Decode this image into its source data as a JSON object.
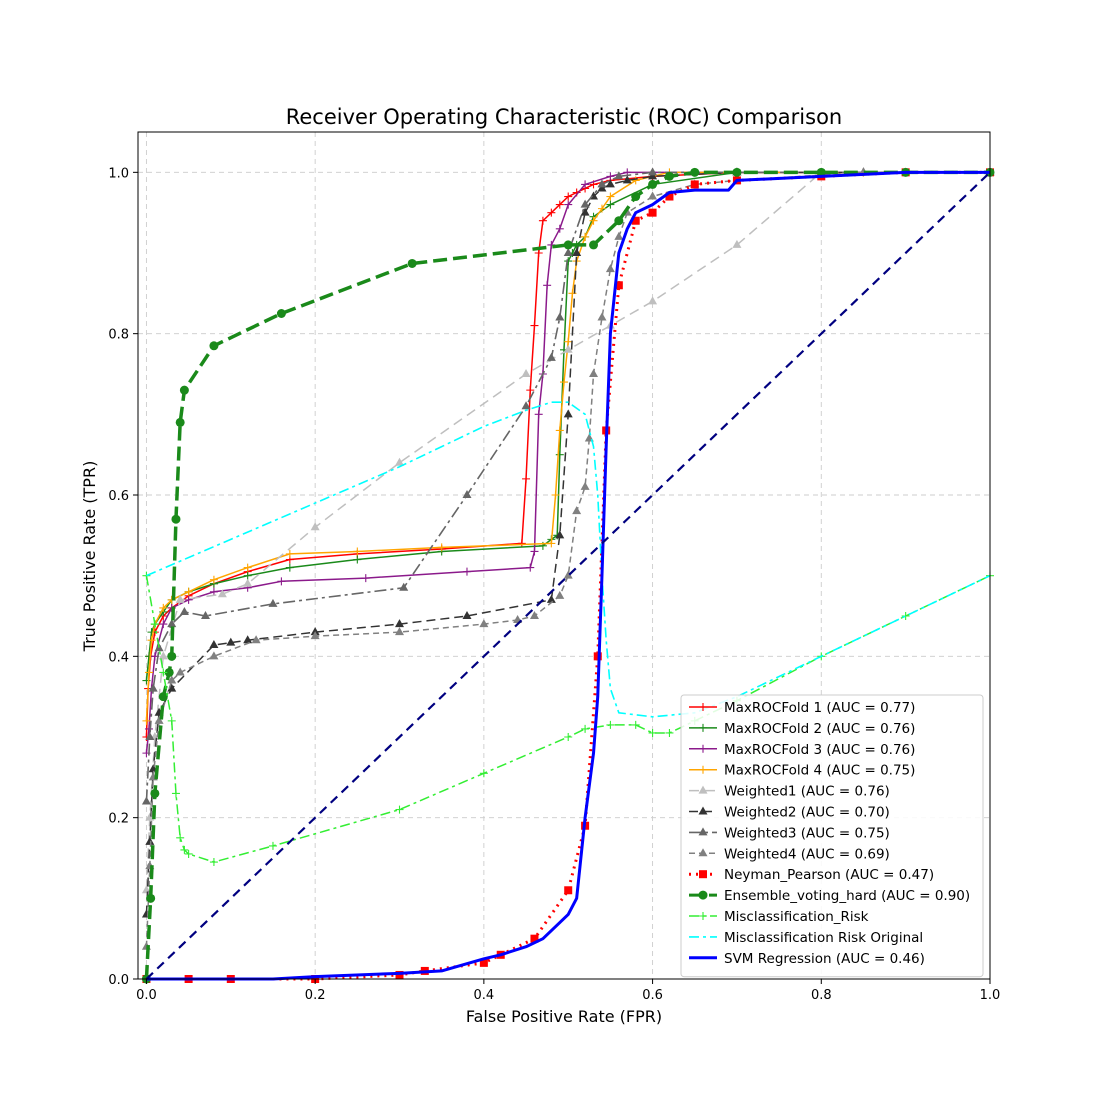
{
  "chart_data": {
    "type": "line",
    "title": "Receiver Operating Characteristic (ROC) Comparison",
    "xlabel": "False Positive Rate (FPR)",
    "ylabel": "True Positive Rate (TPR)",
    "xlim": [
      -0.01,
      1.0
    ],
    "ylim": [
      0.0,
      1.05
    ],
    "xticks": [
      0.0,
      0.2,
      0.4,
      0.6,
      0.8,
      1.0
    ],
    "yticks": [
      0.0,
      0.2,
      0.4,
      0.6,
      0.8,
      1.0
    ],
    "xtick_labels": [
      "0.0",
      "0.2",
      "0.4",
      "0.6",
      "0.8",
      "1.0"
    ],
    "ytick_labels": [
      "0.0",
      "0.2",
      "0.4",
      "0.6",
      "0.8",
      "1.0"
    ],
    "grid": true,
    "legend_position": "lower-right",
    "series": [
      {
        "name": "MaxROCFold 1 (AUC = 0.77)",
        "color": "#ff0000",
        "dash": "",
        "marker": "plus",
        "width": 1.5,
        "x": [
          0,
          0.002,
          0.005,
          0.01,
          0.02,
          0.03,
          0.05,
          0.08,
          0.12,
          0.17,
          0.25,
          0.35,
          0.445,
          0.45,
          0.455,
          0.46,
          0.465,
          0.47,
          0.48,
          0.49,
          0.5,
          0.51,
          0.52,
          0.53,
          0.55,
          0.6,
          0.7,
          0.85,
          1.0
        ],
        "y": [
          0.3,
          0.36,
          0.4,
          0.43,
          0.45,
          0.46,
          0.475,
          0.49,
          0.505,
          0.52,
          0.527,
          0.533,
          0.54,
          0.62,
          0.73,
          0.81,
          0.9,
          0.94,
          0.95,
          0.96,
          0.97,
          0.975,
          0.98,
          0.985,
          0.99,
          0.995,
          1.0,
          1.0,
          1.0
        ]
      },
      {
        "name": "MaxROCFold 2 (AUC = 0.76)",
        "color": "#1a8a1a",
        "dash": "",
        "marker": "plus",
        "width": 1.5,
        "x": [
          0,
          0.003,
          0.006,
          0.01,
          0.02,
          0.03,
          0.05,
          0.08,
          0.12,
          0.17,
          0.25,
          0.35,
          0.47,
          0.48,
          0.487,
          0.49,
          0.495,
          0.5,
          0.505,
          0.51,
          0.52,
          0.53,
          0.55,
          0.6,
          0.7,
          0.85,
          1.0
        ],
        "y": [
          0.37,
          0.4,
          0.43,
          0.44,
          0.455,
          0.47,
          0.48,
          0.49,
          0.5,
          0.51,
          0.52,
          0.53,
          0.537,
          0.545,
          0.55,
          0.65,
          0.78,
          0.89,
          0.9,
          0.91,
          0.92,
          0.945,
          0.96,
          0.985,
          1.0,
          1.0,
          1.0
        ]
      },
      {
        "name": "MaxROCFold 3 (AUC = 0.76)",
        "color": "#8b1a8b",
        "dash": "",
        "marker": "plus",
        "width": 1.5,
        "x": [
          0,
          0.003,
          0.006,
          0.01,
          0.02,
          0.03,
          0.05,
          0.08,
          0.12,
          0.16,
          0.26,
          0.38,
          0.455,
          0.46,
          0.465,
          0.47,
          0.475,
          0.48,
          0.49,
          0.5,
          0.52,
          0.55,
          0.57,
          0.6,
          0.7,
          0.85,
          1.0
        ],
        "y": [
          0.28,
          0.31,
          0.36,
          0.4,
          0.44,
          0.46,
          0.47,
          0.48,
          0.485,
          0.493,
          0.497,
          0.505,
          0.51,
          0.53,
          0.7,
          0.75,
          0.86,
          0.91,
          0.93,
          0.96,
          0.985,
          0.995,
          1.0,
          1.0,
          1.0,
          1.0,
          1.0
        ]
      },
      {
        "name": "MaxROCFold 4 (AUC = 0.75)",
        "color": "#ffa500",
        "dash": "",
        "marker": "plus",
        "width": 1.5,
        "x": [
          0,
          0.003,
          0.006,
          0.01,
          0.02,
          0.03,
          0.05,
          0.08,
          0.12,
          0.17,
          0.25,
          0.35,
          0.48,
          0.485,
          0.49,
          0.495,
          0.5,
          0.505,
          0.51,
          0.52,
          0.53,
          0.54,
          0.55,
          0.58,
          0.62,
          0.7,
          0.85,
          1.0
        ],
        "y": [
          0.32,
          0.38,
          0.42,
          0.44,
          0.46,
          0.47,
          0.48,
          0.495,
          0.51,
          0.527,
          0.53,
          0.535,
          0.54,
          0.6,
          0.68,
          0.74,
          0.79,
          0.85,
          0.89,
          0.92,
          0.94,
          0.955,
          0.97,
          0.99,
          1.0,
          1.0,
          1.0,
          1.0
        ]
      },
      {
        "name": "Weighted1 (AUC = 0.76)",
        "color": "#bfbfbf",
        "dash": "10,6",
        "marker": "triangle",
        "width": 1.5,
        "x": [
          0,
          0.004,
          0.01,
          0.02,
          0.04,
          0.09,
          0.12,
          0.2,
          0.3,
          0.45,
          0.5,
          0.55,
          0.6,
          0.7,
          0.8,
          0.9,
          1.0
        ],
        "y": [
          0.11,
          0.2,
          0.3,
          0.4,
          0.47,
          0.477,
          0.49,
          0.56,
          0.64,
          0.75,
          0.78,
          0.81,
          0.84,
          0.91,
          1.0,
          1.0,
          1.0
        ]
      },
      {
        "name": "Weighted2 (AUC = 0.70)",
        "color": "#333333",
        "dash": "9,5",
        "marker": "triangle",
        "width": 1.5,
        "x": [
          0,
          0.004,
          0.008,
          0.015,
          0.03,
          0.08,
          0.1,
          0.12,
          0.2,
          0.3,
          0.38,
          0.48,
          0.49,
          0.5,
          0.51,
          0.52,
          0.53,
          0.54,
          0.55,
          0.57,
          0.6,
          0.7,
          0.85,
          1.0
        ],
        "y": [
          0.08,
          0.17,
          0.26,
          0.33,
          0.36,
          0.414,
          0.417,
          0.42,
          0.43,
          0.44,
          0.45,
          0.47,
          0.55,
          0.7,
          0.9,
          0.95,
          0.97,
          0.98,
          0.985,
          0.99,
          0.995,
          1.0,
          1.0,
          1.0
        ]
      },
      {
        "name": "Weighted3 (AUC = 0.75)",
        "color": "#666666",
        "dash": "12,4,3,4",
        "marker": "triangle",
        "width": 1.6,
        "x": [
          0,
          0.004,
          0.008,
          0.015,
          0.03,
          0.045,
          0.07,
          0.15,
          0.305,
          0.38,
          0.45,
          0.48,
          0.49,
          0.5,
          0.52,
          0.54,
          0.56,
          0.6,
          0.7,
          0.85,
          1.0
        ],
        "y": [
          0.22,
          0.3,
          0.36,
          0.41,
          0.44,
          0.455,
          0.45,
          0.465,
          0.485,
          0.6,
          0.71,
          0.77,
          0.82,
          0.9,
          0.96,
          0.985,
          0.995,
          1.0,
          1.0,
          1.0,
          1.0
        ]
      },
      {
        "name": "Weighted4 (AUC = 0.69)",
        "color": "#808080",
        "dash": "6,4",
        "marker": "triangle",
        "width": 1.5,
        "x": [
          0,
          0.004,
          0.008,
          0.015,
          0.03,
          0.04,
          0.08,
          0.13,
          0.2,
          0.3,
          0.4,
          0.44,
          0.46,
          0.49,
          0.5,
          0.51,
          0.52,
          0.525,
          0.53,
          0.54,
          0.55,
          0.56,
          0.57,
          0.6,
          0.65,
          0.7,
          0.85,
          1.0
        ],
        "y": [
          0.04,
          0.14,
          0.25,
          0.32,
          0.37,
          0.38,
          0.4,
          0.42,
          0.425,
          0.43,
          0.44,
          0.445,
          0.45,
          0.475,
          0.5,
          0.58,
          0.61,
          0.67,
          0.75,
          0.82,
          0.88,
          0.92,
          0.95,
          0.97,
          0.985,
          0.99,
          1.0,
          1.0
        ]
      },
      {
        "name": "Neyman_Pearson (AUC = 0.47)",
        "color": "#ff0000",
        "dash": "2,5",
        "marker": "square",
        "width": 3,
        "x": [
          0,
          0.05,
          0.1,
          0.2,
          0.3,
          0.33,
          0.4,
          0.42,
          0.46,
          0.5,
          0.52,
          0.535,
          0.545,
          0.56,
          0.58,
          0.6,
          0.62,
          0.65,
          0.7,
          0.8,
          0.9,
          1.0
        ],
        "y": [
          0.0,
          0.0,
          0.0,
          0.0,
          0.005,
          0.01,
          0.02,
          0.03,
          0.05,
          0.11,
          0.19,
          0.4,
          0.68,
          0.86,
          0.94,
          0.95,
          0.97,
          0.985,
          0.99,
          0.995,
          1.0,
          1.0
        ]
      },
      {
        "name": "Ensemble_voting_hard (AUC = 0.90)",
        "color": "#1a8a1a",
        "dash": "14,6",
        "marker": "circle",
        "width": 3.5,
        "x": [
          0,
          0.005,
          0.01,
          0.02,
          0.027,
          0.03,
          0.035,
          0.04,
          0.045,
          0.08,
          0.16,
          0.315,
          0.5,
          0.53,
          0.56,
          0.58,
          0.6,
          0.62,
          0.65,
          0.7,
          0.8,
          0.9,
          1.0
        ],
        "y": [
          0.0,
          0.1,
          0.23,
          0.35,
          0.38,
          0.4,
          0.57,
          0.69,
          0.73,
          0.785,
          0.825,
          0.887,
          0.91,
          0.91,
          0.94,
          0.97,
          0.985,
          0.995,
          1.0,
          1.0,
          1.0,
          1.0,
          1.0
        ]
      },
      {
        "name": "Misclassification_Risk",
        "color": "#33ee33",
        "dash": "10,4,3,4",
        "marker": "plus",
        "width": 1.5,
        "x": [
          0,
          0.01,
          0.02,
          0.03,
          0.035,
          0.04,
          0.045,
          0.05,
          0.08,
          0.15,
          0.3,
          0.4,
          0.5,
          0.52,
          0.55,
          0.58,
          0.6,
          0.62,
          0.65,
          0.7,
          0.8,
          0.9,
          1.0
        ],
        "y": [
          0.5,
          0.44,
          0.38,
          0.32,
          0.23,
          0.175,
          0.16,
          0.155,
          0.145,
          0.165,
          0.21,
          0.255,
          0.3,
          0.31,
          0.315,
          0.315,
          0.305,
          0.305,
          0.32,
          0.345,
          0.4,
          0.45,
          0.5
        ]
      },
      {
        "name": "Misclassification Risk Original",
        "color": "#00ffff",
        "dash": "10,4,3,4",
        "marker": "none",
        "width": 1.6,
        "x": [
          0,
          0.1,
          0.2,
          0.3,
          0.35,
          0.4,
          0.45,
          0.48,
          0.5,
          0.52,
          0.53,
          0.535,
          0.54,
          0.545,
          0.55,
          0.56,
          0.6,
          0.65,
          0.7,
          0.8,
          0.9,
          1.0
        ],
        "y": [
          0.5,
          0.545,
          0.59,
          0.635,
          0.66,
          0.685,
          0.705,
          0.715,
          0.715,
          0.7,
          0.66,
          0.6,
          0.5,
          0.42,
          0.36,
          0.33,
          0.325,
          0.33,
          0.35,
          0.4,
          0.45,
          0.5
        ]
      },
      {
        "name": "SVM Regression (AUC = 0.46)",
        "color": "#0000ff",
        "dash": "",
        "marker": "none",
        "width": 3,
        "x": [
          0,
          0.15,
          0.2,
          0.3,
          0.35,
          0.4,
          0.42,
          0.45,
          0.47,
          0.49,
          0.5,
          0.51,
          0.52,
          0.53,
          0.535,
          0.54,
          0.545,
          0.55,
          0.56,
          0.57,
          0.58,
          0.6,
          0.62,
          0.65,
          0.69,
          0.7,
          0.8,
          0.9,
          1.0
        ],
        "y": [
          0.0,
          0.0,
          0.003,
          0.007,
          0.01,
          0.025,
          0.03,
          0.04,
          0.05,
          0.07,
          0.08,
          0.1,
          0.2,
          0.28,
          0.35,
          0.5,
          0.66,
          0.8,
          0.9,
          0.93,
          0.95,
          0.96,
          0.975,
          0.978,
          0.978,
          0.99,
          0.995,
          1.0,
          1.0
        ]
      },
      {
        "name": "",
        "color": "#000080",
        "dash": "9,6",
        "marker": "none",
        "width": 2.2,
        "x": [
          0,
          1
        ],
        "y": [
          0,
          1
        ]
      }
    ]
  }
}
